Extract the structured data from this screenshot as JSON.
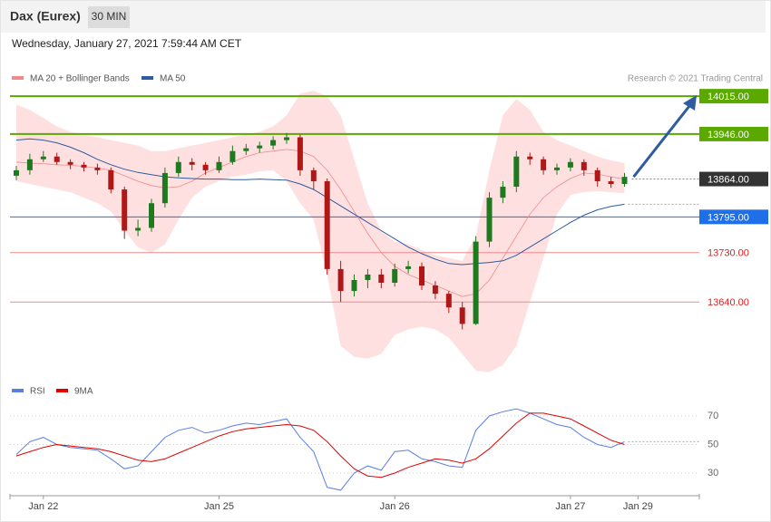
{
  "header": {
    "title": "Dax (Eurex)",
    "interval": "30 MIN"
  },
  "timestamp": "Wednesday, January 27, 2021 7:59:44 AM CET",
  "credit": "Research © 2021 Trading Central",
  "chart_data": [
    {
      "type": "candlestick",
      "up_color": "#1f7a1f",
      "down_color": "#b01818",
      "open": [
        13870,
        13880,
        13900,
        13905,
        13895,
        13890,
        13885,
        13880,
        13845,
        13770,
        13775,
        13820,
        13875,
        13895,
        13890,
        13880,
        13895,
        13915,
        13920,
        13925,
        13935,
        13940,
        13880,
        13860,
        13700,
        13660,
        13680,
        13690,
        13675,
        13700,
        13705,
        13670,
        13655,
        13630,
        13600,
        13750,
        13830,
        13850,
        13905,
        13900,
        13880,
        13885,
        13895,
        13880,
        13860,
        13855,
        null
      ],
      "high": [
        13888,
        13910,
        13915,
        13912,
        13900,
        13895,
        13892,
        13885,
        13850,
        13790,
        13828,
        13885,
        13905,
        13902,
        13895,
        13905,
        13925,
        13928,
        13932,
        13942,
        13948,
        13945,
        13885,
        13865,
        13715,
        13690,
        13700,
        13700,
        13710,
        13715,
        13712,
        13678,
        13660,
        13640,
        13760,
        13840,
        13860,
        13915,
        13912,
        13905,
        13892,
        13902,
        13900,
        13885,
        13868,
        13875,
        null
      ],
      "low": [
        13862,
        13872,
        13895,
        13890,
        13882,
        13878,
        13872,
        13838,
        13755,
        13760,
        13768,
        13812,
        13868,
        13880,
        13872,
        13875,
        13890,
        13908,
        13912,
        13918,
        13928,
        13870,
        13845,
        13690,
        13640,
        13650,
        13665,
        13665,
        13668,
        13692,
        13662,
        13645,
        13620,
        13590,
        13598,
        13740,
        13820,
        13840,
        13890,
        13872,
        13872,
        13878,
        13870,
        13850,
        13848,
        13850,
        null
      ],
      "close": [
        13880,
        13900,
        13905,
        13895,
        13890,
        13885,
        13880,
        13845,
        13770,
        13775,
        13820,
        13875,
        13895,
        13890,
        13880,
        13895,
        13915,
        13920,
        13925,
        13935,
        13940,
        13880,
        13860,
        13700,
        13660,
        13680,
        13690,
        13675,
        13700,
        13705,
        13670,
        13655,
        13630,
        13600,
        13750,
        13830,
        13850,
        13905,
        13900,
        13880,
        13885,
        13895,
        13880,
        13860,
        13855,
        13868,
        null
      ],
      "series": [
        {
          "name": "MA 20 + Bollinger Bands",
          "color": "#f08a8a",
          "band_color": "#ffe0e0",
          "values": [
            13895,
            13893,
            13892,
            13890,
            13889,
            13887,
            13884,
            13880,
            13870,
            13860,
            13852,
            13848,
            13850,
            13860,
            13875,
            13885,
            13895,
            13905,
            13912,
            13915,
            13918,
            13915,
            13905,
            13880,
            13845,
            13805,
            13765,
            13730,
            13705,
            13690,
            13680,
            13670,
            13660,
            13650,
            13655,
            13680,
            13720,
            13760,
            13800,
            13830,
            13850,
            13865,
            13875,
            13873,
            13868,
            13864,
            null
          ],
          "upper": [
            14000,
            13990,
            13975,
            13960,
            13950,
            13945,
            13940,
            13935,
            13930,
            13925,
            13915,
            13915,
            13920,
            13925,
            13930,
            13935,
            13940,
            13945,
            13950,
            13960,
            13980,
            14020,
            14025,
            14015,
            13980,
            13900,
            13820,
            13770,
            13750,
            13745,
            13735,
            13725,
            13720,
            13715,
            13760,
            13880,
            13980,
            14010,
            13990,
            13950,
            13935,
            13925,
            13915,
            13905,
            13898,
            13893,
            null
          ],
          "lower": [
            13860,
            13855,
            13850,
            13845,
            13840,
            13830,
            13820,
            13805,
            13770,
            13740,
            13730,
            13745,
            13790,
            13830,
            13850,
            13860,
            13868,
            13872,
            13878,
            13880,
            13860,
            13820,
            13790,
            13690,
            13560,
            13540,
            13537,
            13545,
            13580,
            13590,
            13595,
            13590,
            13575,
            13545,
            13515,
            13512,
            13525,
            13560,
            13640,
            13720,
            13800,
            13835,
            13840,
            13842,
            13840,
            13838,
            null
          ]
        },
        {
          "name": "MA 50",
          "color": "#2e5c9e",
          "values": [
            13935,
            13937,
            13935,
            13930,
            13922,
            13912,
            13900,
            13890,
            13882,
            13876,
            13872,
            13868,
            13866,
            13865,
            13864,
            13864,
            13863,
            13863,
            13864,
            13863,
            13862,
            13855,
            13845,
            13830,
            13815,
            13800,
            13785,
            13770,
            13755,
            13740,
            13728,
            13718,
            13710,
            13708,
            13710,
            13712,
            13715,
            13725,
            13740,
            13755,
            13770,
            13785,
            13798,
            13808,
            13814,
            13818,
            null
          ]
        }
      ],
      "ylim": [
        13500,
        14035
      ],
      "levels": [
        {
          "price": {
            "value": 14015,
            "label": "14015.00"
          },
          "color": "#5aa800",
          "badge": true,
          "line": "solid"
        },
        {
          "price": {
            "value": 13946,
            "label": "13946.00"
          },
          "color": "#5aa800",
          "badge": true,
          "line": "solid"
        },
        {
          "price": {
            "value": 13864,
            "label": "13864.00"
          },
          "color": "#333333",
          "badge": true,
          "line": "dotted"
        },
        {
          "price": {
            "value": 13795,
            "label": "13795.00"
          },
          "color": "#1e6fe8",
          "badge": true,
          "line": "solid"
        },
        {
          "price": {
            "value": 13730,
            "label": "13730.00"
          },
          "color": "#f08a8a",
          "badge": false,
          "line": "solid"
        },
        {
          "price": {
            "value": 13640,
            "label": "13640.00"
          },
          "color": "#f08a8a",
          "badge": false,
          "line": "solid"
        }
      ]
    },
    {
      "type": "line",
      "categories": [
        null,
        null,
        "Jan 22",
        null,
        null,
        null,
        null,
        null,
        null,
        null,
        null,
        null,
        null,
        null,
        null,
        "Jan 25",
        null,
        null,
        null,
        null,
        null,
        null,
        null,
        null,
        null,
        null,
        null,
        null,
        "Jan 26",
        null,
        null,
        null,
        null,
        null,
        null,
        null,
        null,
        null,
        null,
        null,
        null,
        "Jan 27",
        null,
        null,
        null,
        null,
        "Jan 29"
      ],
      "series": [
        {
          "name": "RSI",
          "color": "#5b7fe0",
          "values": [
            43,
            52,
            55,
            50,
            48,
            47,
            46,
            40,
            33,
            35,
            45,
            55,
            60,
            62,
            58,
            60,
            63,
            65,
            64,
            66,
            68,
            55,
            45,
            20,
            18,
            30,
            35,
            32,
            45,
            46,
            40,
            38,
            35,
            34,
            60,
            70,
            73,
            75,
            72,
            68,
            64,
            62,
            55,
            50,
            48,
            52,
            null
          ]
        },
        {
          "name": "9MA",
          "color": "#e00000",
          "values": [
            42,
            45,
            48,
            50,
            49,
            48,
            47,
            45,
            42,
            39,
            38,
            40,
            44,
            48,
            52,
            56,
            59,
            61,
            62,
            63,
            64,
            63,
            60,
            52,
            42,
            33,
            28,
            27,
            30,
            34,
            37,
            40,
            39,
            37,
            40,
            47,
            56,
            65,
            72,
            72,
            70,
            68,
            63,
            58,
            53,
            50,
            null
          ]
        }
      ],
      "ylim": [
        14,
        80
      ],
      "yticks": [
        70,
        50,
        30
      ],
      "grid": true
    }
  ]
}
